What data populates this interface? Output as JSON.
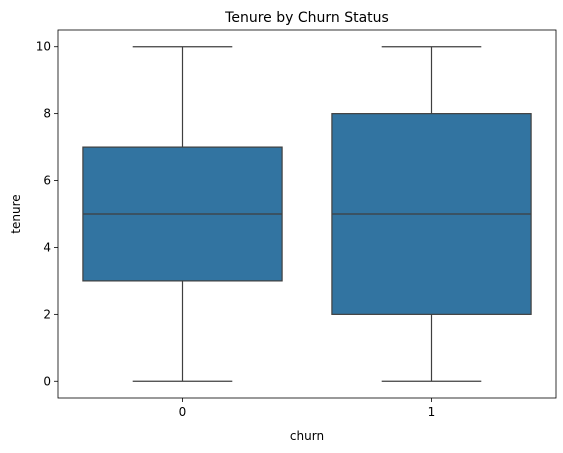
{
  "chart_data": {
    "type": "box",
    "title": "Tenure by Churn Status",
    "xlabel": "churn",
    "ylabel": "tenure",
    "categories": [
      "0",
      "1"
    ],
    "boxes": [
      {
        "category": "0",
        "min": 0,
        "q1": 3,
        "median": 5,
        "q3": 7,
        "max": 10
      },
      {
        "category": "1",
        "min": 0,
        "q1": 2,
        "median": 5,
        "q3": 8,
        "max": 10
      }
    ],
    "ylim": [
      -0.5,
      10.5
    ],
    "yticks": [
      0,
      2,
      4,
      6,
      8,
      10
    ],
    "grid": false,
    "box_color": "#3274a1",
    "line_color": "#3f3f3f"
  }
}
